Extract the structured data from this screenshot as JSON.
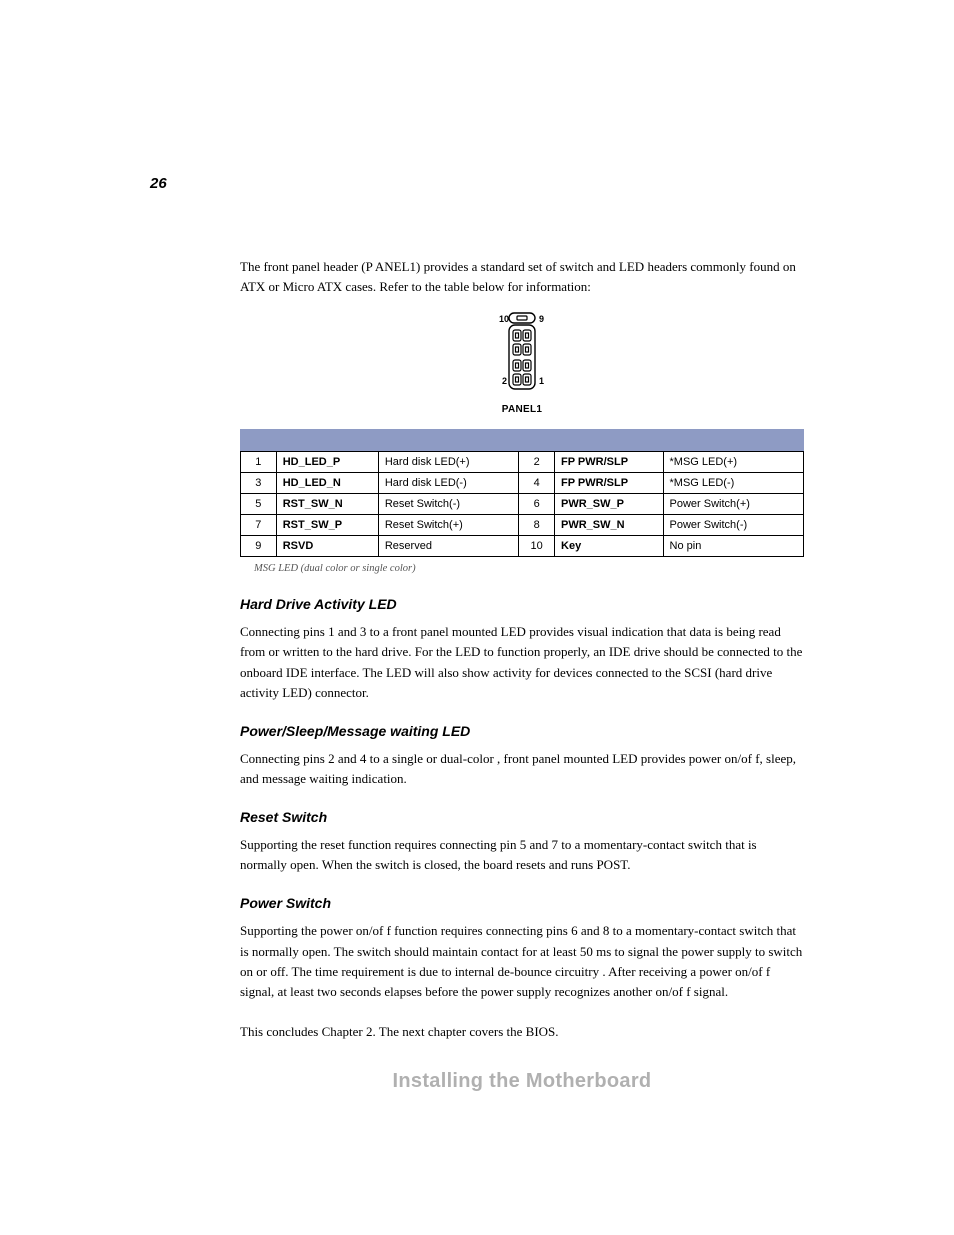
{
  "page_number": "26",
  "intro": "The front panel header (P ANEL1) provides a standard set of switch and LED headers commonly found on  ATX or Micro  ATX cases. Refer to the table below for information:",
  "diagram": {
    "pin_top_left": "10",
    "pin_top_right": "9",
    "pin_bot_left": "2",
    "pin_bot_right": "1",
    "label": "PANEL1"
  },
  "table_rows": [
    [
      "1",
      "HD_LED_P",
      "Hard disk LED(+)",
      "2",
      "FP PWR/SLP",
      "*MSG LED(+)"
    ],
    [
      "3",
      "HD_LED_N",
      "Hard disk LED(-)",
      "4",
      "FP PWR/SLP",
      "*MSG LED(-)"
    ],
    [
      "5",
      "RST_SW_N",
      "Reset Switch(-)",
      "6",
      "PWR_SW_P",
      "Power Switch(+)"
    ],
    [
      "7",
      "RST_SW_P",
      "Reset Switch(+)",
      "8",
      "PWR_SW_N",
      "Power Switch(-)"
    ],
    [
      "9",
      "RSVD",
      "Reserved",
      "10",
      "Key",
      "No pin"
    ]
  ],
  "footnote": "MSG LED (dual color or single color)",
  "sections": [
    {
      "heading": "Hard Drive Activity LED",
      "body": "Connecting pins 1 and 3 to a front panel mounted LED provides visual indication that data is being read from or written to the hard drive. For the LED to function properly, an IDE drive should be connected to the onboard IDE interface.     The LED will also show activity for devices connected to the SCSI (hard drive activity LED) connector."
    },
    {
      "heading": "Power/Sleep/Message waiting LED",
      "body": "Connecting pins 2 and 4 to a single or dual-color   , front panel mounted LED provides power on/of f, sleep, and message waiting indication."
    },
    {
      "heading": "Reset Switch",
      "body": "Supporting the reset function requires connecting pin 5 and 7 to a momentary-contact switch that is normally open.    When the switch is closed, the board resets and runs POST."
    },
    {
      "heading": "Power Switch",
      "body": "Supporting the power on/of f function requires connecting pins 6 and 8 to a momentary-contact switch that is normally open. The switch should maintain contact for at least 50 ms to signal the power supply to switch on or off. The time requirement is due to internal de-bounce circuitry  . After receiving a power on/of  f signal, at least two seconds elapses before the power supply recognizes another on/of   f signal."
    }
  ],
  "conclusion": "This concludes Chapter 2. The next chapter covers the BIOS.",
  "footer_title": "Installing the Motherboard",
  "colors": {
    "header_bar": "#8e9bc4",
    "footer_gray": "#b0b0b0"
  }
}
